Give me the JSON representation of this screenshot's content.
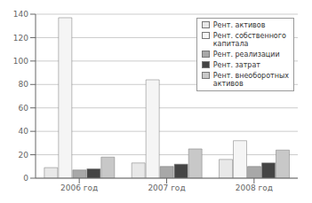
{
  "chart_data": {
    "type": "bar",
    "categories": [
      "2006 год",
      "2007 год",
      "2008 год"
    ],
    "series": [
      {
        "name": "Рент. активов",
        "color": "#e8e8e8",
        "values": [
          9,
          13,
          16
        ]
      },
      {
        "name": "Рент. собственного\nкапитала",
        "color": "#f5f5f5",
        "values": [
          137,
          84,
          32
        ]
      },
      {
        "name": "Рент. реализации",
        "color": "#a8a8a8",
        "values": [
          7,
          10,
          10
        ]
      },
      {
        "name": "Рент. затрат",
        "color": "#444444",
        "values": [
          8,
          12,
          13
        ]
      },
      {
        "name": "Рент. внеоборотных\nактивов",
        "color": "#c8c8c8",
        "values": [
          18,
          25,
          24
        ]
      }
    ],
    "ylim": [
      0,
      140
    ],
    "yticks": [
      0,
      20,
      40,
      60,
      80,
      100,
      120,
      140
    ],
    "grid": true,
    "legend": "upper right"
  }
}
